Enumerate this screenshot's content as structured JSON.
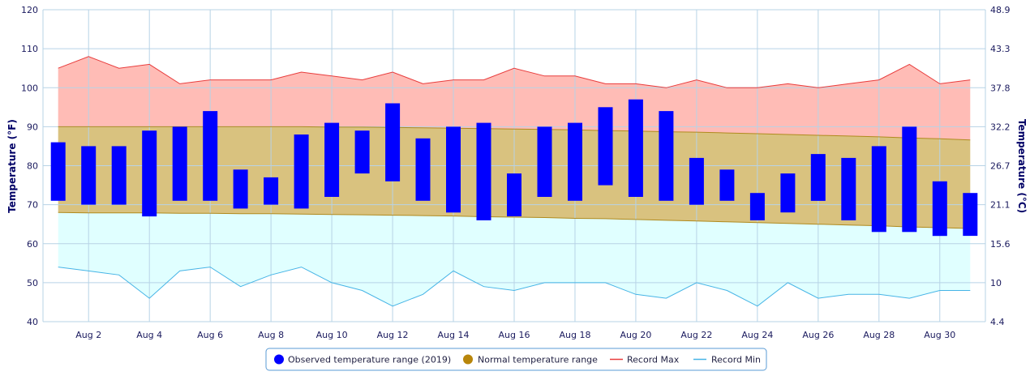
{
  "chart_data": {
    "type": "bar",
    "ylabel_left": "Temperature (°F)",
    "ylabel_right": "Temperature (°C)",
    "ylim": [
      40,
      120
    ],
    "yticks_f": [
      "40",
      "50",
      "60",
      "70",
      "80",
      "90",
      "100",
      "110",
      "120"
    ],
    "yticks_c": [
      "4.4",
      "10",
      "15.6",
      "21.1",
      "26.7",
      "32.2",
      "37.8",
      "43.3",
      "48.9"
    ],
    "days": [
      1,
      2,
      3,
      4,
      5,
      6,
      7,
      8,
      9,
      10,
      11,
      12,
      13,
      14,
      15,
      16,
      17,
      18,
      19,
      20,
      21,
      22,
      23,
      24,
      25,
      26,
      27,
      28,
      29,
      30,
      31
    ],
    "xtick_labels": [
      "Aug 2",
      "Aug 4",
      "Aug 6",
      "Aug 8",
      "Aug 10",
      "Aug 12",
      "Aug 14",
      "Aug 16",
      "Aug 18",
      "Aug 20",
      "Aug 22",
      "Aug 24",
      "Aug 26",
      "Aug 28",
      "Aug 30"
    ],
    "xtick_days": [
      2,
      4,
      6,
      8,
      10,
      12,
      14,
      16,
      18,
      20,
      22,
      24,
      26,
      28,
      30
    ],
    "observed": {
      "name": "Observed temperature range (2019)",
      "low": [
        71,
        70,
        70,
        67,
        71,
        71,
        69,
        70,
        69,
        72,
        78,
        76,
        71,
        68,
        66,
        67,
        72,
        71,
        75,
        72,
        71,
        70,
        71,
        66,
        68,
        71,
        66,
        63,
        63,
        62,
        62
      ],
      "high": [
        86,
        85,
        85,
        89,
        90,
        94,
        79,
        77,
        88,
        91,
        89,
        96,
        87,
        90,
        91,
        78,
        90,
        91,
        95,
        97,
        94,
        82,
        79,
        73,
        78,
        83,
        82,
        85,
        90,
        76,
        73
      ]
    },
    "normal": {
      "name": "Normal temperature range",
      "low": [
        68,
        67.9,
        67.9,
        67.9,
        67.8,
        67.8,
        67.7,
        67.7,
        67.6,
        67.5,
        67.4,
        67.3,
        67.2,
        67.1,
        66.9,
        66.8,
        66.7,
        66.5,
        66.4,
        66.2,
        66.0,
        65.8,
        65.6,
        65.4,
        65.2,
        65.0,
        64.8,
        64.6,
        64.3,
        64.1,
        63.9
      ],
      "high": [
        90,
        90,
        90,
        90,
        90,
        90,
        90,
        90,
        90,
        89.9,
        89.9,
        89.8,
        89.7,
        89.6,
        89.5,
        89.4,
        89.3,
        89.2,
        89.0,
        88.9,
        88.7,
        88.6,
        88.4,
        88.2,
        88.0,
        87.8,
        87.6,
        87.4,
        87.1,
        86.9,
        86.6
      ]
    },
    "record_max": {
      "name": "Record Max",
      "values": [
        105,
        108,
        105,
        106,
        101,
        102,
        102,
        102,
        104,
        103,
        102,
        104,
        101,
        102,
        102,
        105,
        103,
        103,
        101,
        101,
        100,
        102,
        100,
        100,
        101,
        100,
        101,
        102,
        106,
        101,
        102
      ]
    },
    "record_min": {
      "name": "Record Min",
      "values": [
        54,
        53,
        52,
        46,
        53,
        54,
        49,
        52,
        54,
        50,
        48,
        44,
        47,
        53,
        49,
        48,
        50,
        50,
        50,
        47,
        46,
        50,
        48,
        44,
        50,
        46,
        47,
        47,
        46,
        48,
        48
      ]
    },
    "grid": true,
    "legend_position": "bottom-center",
    "colors": {
      "observed": "#0000ff",
      "normal_fill": "#d9c27f",
      "normal_stroke": "#b08a1e",
      "normal_legend": "#b8860b",
      "record_max_fill": "#ffbcb6",
      "record_max_line": "#e83c3c",
      "record_min_fill": "#e0ffff",
      "record_min_line": "#46b4e6",
      "grid": "#b7d3e6",
      "axis_text": "#1a1a5e",
      "axis_title": "#000066"
    }
  }
}
